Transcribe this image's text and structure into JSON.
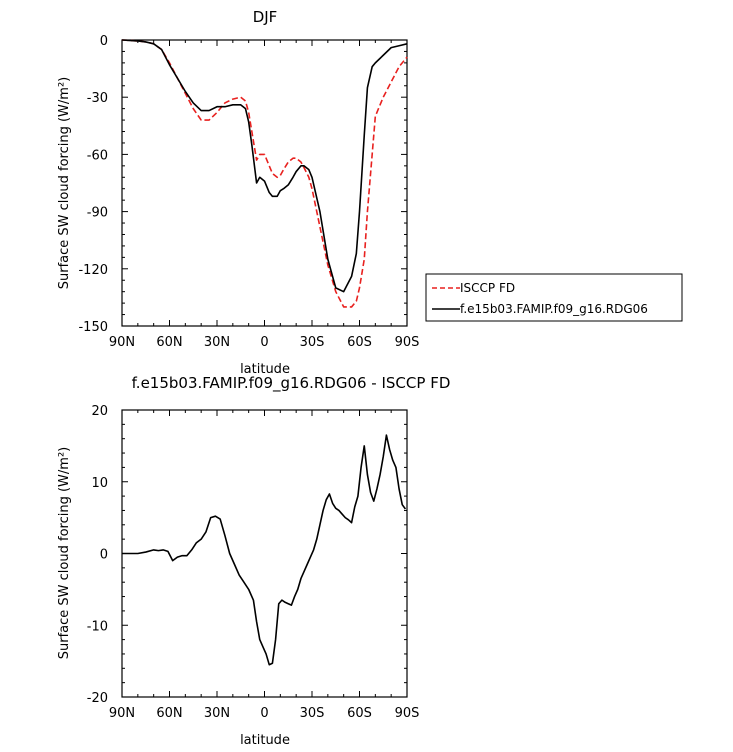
{
  "chart_data": [
    {
      "type": "line",
      "title": "DJF",
      "xlabel": "latitude",
      "ylabel": "Surface SW cloud forcing (W/m²)",
      "xlim": [
        90,
        -90
      ],
      "ylim": [
        -150,
        0
      ],
      "x_tick_labels": [
        "90N",
        "60N",
        "30N",
        "0",
        "30S",
        "60S",
        "90S"
      ],
      "y_ticks": [
        0,
        -30,
        -60,
        -90,
        -120,
        -150
      ],
      "legend": {
        "placement": "right",
        "entries": [
          "ISCCP FD",
          "f.e15b03.FAMIP.f09_g16.RDG06"
        ]
      },
      "series": [
        {
          "name": "ISCCP FD",
          "color": "#e8211f",
          "dash": "dashed",
          "x": [
            90,
            80,
            75,
            70,
            65,
            60,
            55,
            50,
            45,
            40,
            35,
            30,
            25,
            20,
            15,
            12,
            10,
            8,
            5,
            3,
            0,
            -3,
            -5,
            -8,
            -10,
            -12,
            -15,
            -18,
            -20,
            -23,
            -25,
            -28,
            -30,
            -35,
            -40,
            -45,
            -50,
            -55,
            -58,
            -60,
            -63,
            -65,
            -68,
            -70,
            -75,
            -80,
            -85,
            -90
          ],
          "y": [
            0,
            -0.5,
            -1,
            -2,
            -5,
            -12,
            -20,
            -28,
            -36,
            -42,
            -42,
            -38,
            -33,
            -31,
            -30,
            -32,
            -38,
            -48,
            -63,
            -60,
            -60,
            -66,
            -70,
            -72,
            -71,
            -68,
            -64,
            -62,
            -62,
            -64,
            -67,
            -72,
            -78,
            -98,
            -118,
            -132,
            -140,
            -140,
            -137,
            -130,
            -115,
            -90,
            -60,
            -40,
            -30,
            -22,
            -14,
            -9
          ]
        },
        {
          "name": "f.e15b03.FAMIP.f09_g16.RDG06",
          "color": "#000000",
          "dash": "solid",
          "x": [
            90,
            80,
            75,
            70,
            65,
            60,
            55,
            50,
            45,
            40,
            35,
            30,
            25,
            20,
            15,
            12,
            10,
            8,
            5,
            3,
            0,
            -3,
            -5,
            -8,
            -10,
            -12,
            -15,
            -18,
            -20,
            -23,
            -25,
            -28,
            -30,
            -35,
            -40,
            -45,
            -50,
            -55,
            -58,
            -60,
            -63,
            -65,
            -68,
            -70,
            -75,
            -80,
            -85,
            -90
          ],
          "y": [
            0,
            -0.5,
            -1,
            -2,
            -5,
            -13,
            -20,
            -27,
            -33,
            -37,
            -37,
            -35,
            -35,
            -34,
            -34,
            -36,
            -43,
            -55,
            -75,
            -72,
            -74,
            -80,
            -82,
            -82,
            -79,
            -78,
            -76,
            -72,
            -69,
            -66,
            -66,
            -68,
            -72,
            -90,
            -115,
            -130,
            -132,
            -124,
            -112,
            -90,
            -50,
            -25,
            -14,
            -12,
            -8,
            -4,
            -3,
            -2
          ]
        }
      ]
    },
    {
      "type": "line",
      "title": "f.e15b03.FAMIP.f09_g16.RDG06 - ISCCP FD",
      "xlabel": "latitude",
      "ylabel": "Surface SW cloud forcing (W/m²)",
      "xlim": [
        90,
        -90
      ],
      "ylim": [
        -20,
        20
      ],
      "x_tick_labels": [
        "90N",
        "60N",
        "30N",
        "0",
        "30S",
        "60S",
        "90S"
      ],
      "y_ticks": [
        20,
        10,
        0,
        -10,
        -20
      ],
      "series": [
        {
          "color": "#000000",
          "dash": "solid",
          "x": [
            90,
            80,
            75,
            70,
            67,
            64,
            61,
            58,
            55,
            52,
            49,
            46,
            43,
            40,
            37,
            34,
            31,
            28,
            25,
            22,
            19,
            16,
            13,
            10,
            7,
            5,
            3,
            1,
            -1,
            -3,
            -5,
            -7,
            -9,
            -11,
            -13,
            -15,
            -17,
            -19,
            -21,
            -23,
            -25,
            -27,
            -29,
            -31,
            -33,
            -35,
            -37,
            -39,
            -41,
            -43,
            -45,
            -47,
            -49,
            -51,
            -53,
            -55,
            -57,
            -59,
            -61,
            -63,
            -65,
            -67,
            -69,
            -71,
            -73,
            -75,
            -77,
            -79,
            -81,
            -83,
            -85,
            -87,
            -89
          ],
          "y": [
            0,
            0,
            0.2,
            0.5,
            0.4,
            0.5,
            0.3,
            -1.0,
            -0.5,
            -0.3,
            -0.3,
            0.5,
            1.5,
            2.0,
            3.0,
            5.0,
            5.2,
            4.8,
            2.5,
            0,
            -1.5,
            -3.0,
            -4.0,
            -5.0,
            -6.5,
            -9.5,
            -12.0,
            -13.0,
            -14.0,
            -15.5,
            -15.3,
            -12.0,
            -7.0,
            -6.5,
            -6.8,
            -7.0,
            -7.2,
            -6.0,
            -5.0,
            -3.5,
            -2.5,
            -1.5,
            -0.5,
            0.5,
            2.0,
            4.0,
            6.0,
            7.5,
            8.3,
            7.0,
            6.3,
            6.0,
            5.5,
            5.0,
            4.7,
            4.3,
            6.5,
            8.0,
            12.0,
            15.0,
            11.0,
            8.5,
            7.3,
            9.0,
            11.0,
            13.5,
            16.5,
            14.5,
            13.0,
            12.0,
            9.0,
            6.8,
            6.2
          ]
        }
      ]
    }
  ]
}
